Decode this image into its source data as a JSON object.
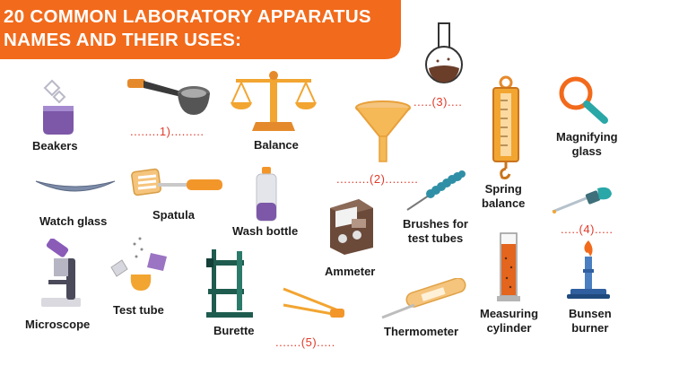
{
  "header": {
    "title_line1": "20 COMMON LABORATORY APPARATUS",
    "title_line2": "NAMES AND THEIR USES:"
  },
  "colors": {
    "banner": "#f26a1b",
    "blank_text": "#e03a2a",
    "label_text": "#1b1b1b"
  },
  "labels": {
    "beakers": "Beakers",
    "balance": "Balance",
    "magnifying_1": "Magnifying",
    "magnifying_2": "glass",
    "spring_1": "Spring",
    "spring_2": "balance",
    "watch_glass": "Watch glass",
    "spatula": "Spatula",
    "wash_bottle": "Wash bottle",
    "brushes_1": "Brushes for",
    "brushes_2": "test tubes",
    "ammeter": "Ammeter",
    "microscope": "Microscope",
    "test_tube": "Test tube",
    "burette": "Burette",
    "thermometer": "Thermometer",
    "measuring_1": "Measuring",
    "measuring_2": "cylinder",
    "bunsen_1": "Bunsen",
    "bunsen_2": "burner"
  },
  "blanks": {
    "b1": "........1).........",
    "b2": ".........(2).........",
    "b3": ".....(3)....",
    "b4": ".....(4).....",
    "b5": ".......(5)....."
  },
  "icons": [
    "beaker-icon",
    "strainer-icon",
    "balance-icon",
    "funnel-icon",
    "round-flask-icon",
    "spring-balance-icon",
    "magnifying-glass-icon",
    "watch-glass-icon",
    "spatula-icon",
    "wash-bottle-icon",
    "ammeter-icon",
    "test-tube-brush-icon",
    "dropper-icon",
    "microscope-icon",
    "test-tube-icon",
    "burette-icon",
    "tongs-icon",
    "thermometer-icon",
    "measuring-cylinder-icon",
    "bunsen-burner-icon"
  ]
}
